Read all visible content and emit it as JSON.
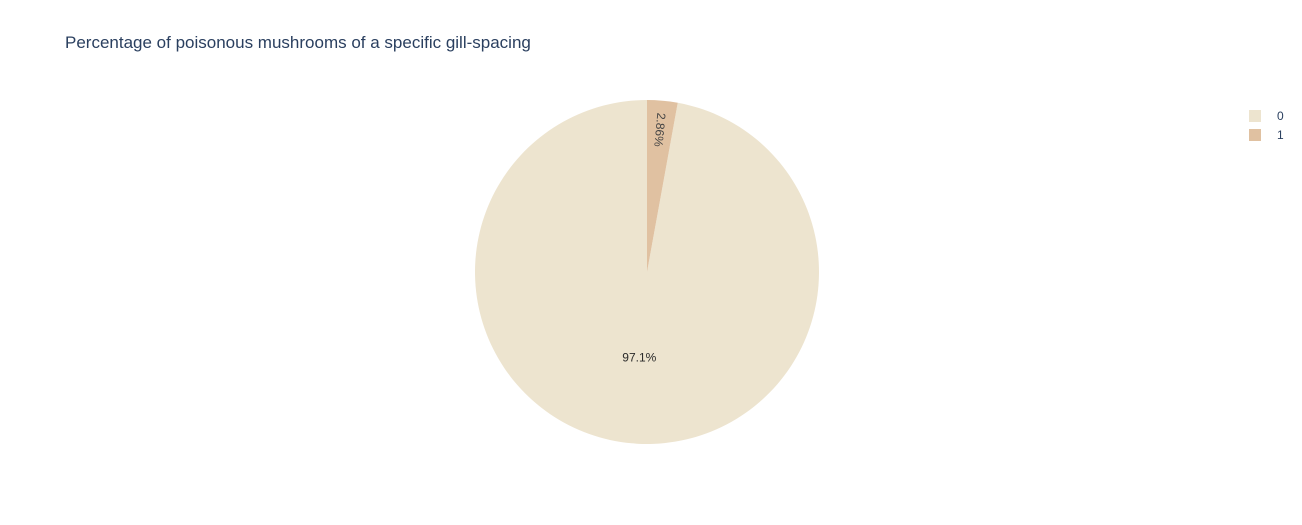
{
  "chart_data": {
    "type": "pie",
    "title": "Percentage of poisonous mushrooms of a specific gill-spacing",
    "labels": [
      "0",
      "1"
    ],
    "values": [
      97.14,
      2.86
    ],
    "text_labels": [
      "97.1%",
      "2.86%"
    ],
    "colors": [
      "#ede4cf",
      "#e0c1a1"
    ],
    "direction": "clockwise",
    "start_angle": "top",
    "legend": "right"
  }
}
